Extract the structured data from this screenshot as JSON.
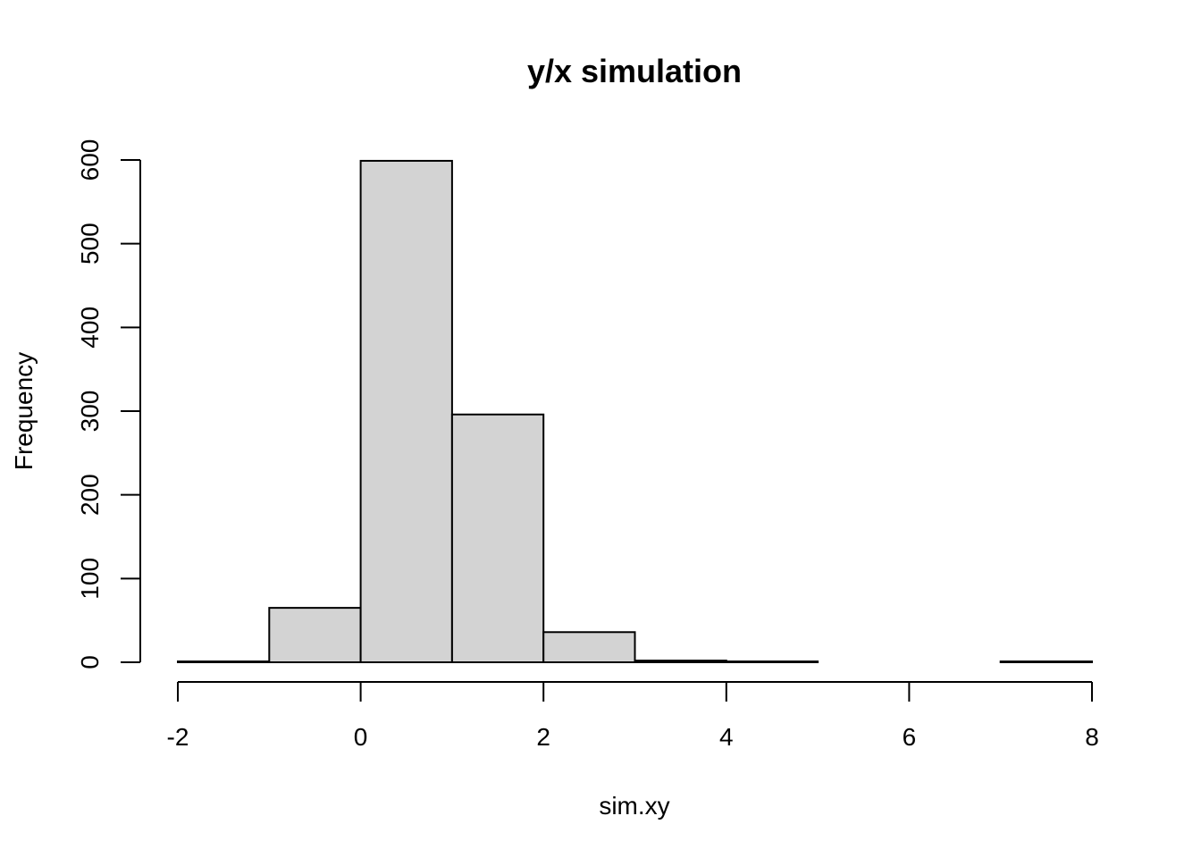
{
  "chart_data": {
    "type": "bar",
    "subtype": "histogram",
    "title": "y/x simulation",
    "xlabel": "sim.xy",
    "ylabel": "Frequency",
    "bins": [
      {
        "x0": -2,
        "x1": -1,
        "count": 1
      },
      {
        "x0": -1,
        "x1": 0,
        "count": 65
      },
      {
        "x0": 0,
        "x1": 1,
        "count": 599
      },
      {
        "x0": 1,
        "x1": 2,
        "count": 296
      },
      {
        "x0": 2,
        "x1": 3,
        "count": 36
      },
      {
        "x0": 3,
        "x1": 4,
        "count": 2
      },
      {
        "x0": 4,
        "x1": 5,
        "count": 1
      },
      {
        "x0": 5,
        "x1": 6,
        "count": 0
      },
      {
        "x0": 6,
        "x1": 7,
        "count": 0
      },
      {
        "x0": 7,
        "x1": 8,
        "count": 1
      }
    ],
    "xlim": [
      -2,
      8
    ],
    "ylim": [
      0,
      600
    ],
    "x_ticks": [
      -2,
      0,
      2,
      4,
      6,
      8
    ],
    "y_ticks": [
      0,
      100,
      200,
      300,
      400,
      500,
      600
    ],
    "bar_fill": "#d3d3d3",
    "bar_stroke": "#000000",
    "grid": false
  }
}
